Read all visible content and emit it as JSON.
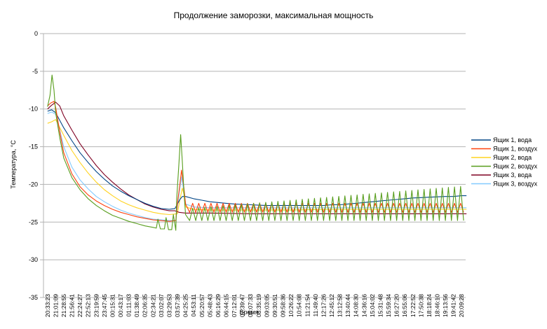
{
  "chart_data": {
    "type": "line",
    "title": "Продолжение заморозки, максимальная мощность",
    "xlabel": "Время",
    "ylabel": "Температура, °C",
    "ylim": [
      -35,
      0
    ],
    "yticks": [
      0,
      -5,
      -10,
      -15,
      -20,
      -25,
      -30,
      -35
    ],
    "grid": "horizontal",
    "legend_position": "right",
    "x_tick_labels": [
      "20:33:23",
      "21:01:09",
      "21:28:55",
      "21:56:41",
      "22:24:27",
      "22:52:13",
      "23:19:59",
      "23:47:45",
      "00:15:31",
      "00:43:17",
      "01:11:03",
      "01:38:49",
      "02:06:35",
      "02:34:21",
      "03:02:07",
      "03:29:53",
      "03:57:39",
      "04:25:25",
      "04:53:11",
      "05:20:57",
      "05:48:43",
      "06:16:29",
      "06:44:15",
      "07:12:01",
      "07:39:47",
      "08:07:33",
      "08:35:19",
      "09:03:05",
      "09:30:51",
      "09:58:36",
      "10:26:22",
      "10:54:08",
      "11:21:54",
      "11:49:40",
      "12:17:26",
      "12:45:12",
      "13:12:58",
      "13:40:44",
      "14:08:30",
      "14:36:16",
      "15:04:02",
      "15:31:48",
      "15:59:34",
      "16:27:20",
      "16:55:06",
      "17:22:52",
      "17:50:38",
      "18:18:24",
      "18:46:10",
      "19:13:56",
      "19:41:42",
      "20:09:28"
    ],
    "series": [
      {
        "name": "Ящик 1, вода",
        "color": "#004586",
        "points": [
          [
            0,
            -10.3
          ],
          [
            0.5,
            -10.1
          ],
          [
            1,
            -10.5
          ],
          [
            2,
            -12.5
          ],
          [
            3,
            -14.2
          ],
          [
            4,
            -15.8
          ],
          [
            5,
            -17.1
          ],
          [
            6,
            -18.3
          ],
          [
            7,
            -19.3
          ],
          [
            8,
            -20.2
          ],
          [
            9,
            -20.9
          ],
          [
            10,
            -21.5
          ],
          [
            11,
            -22.0
          ],
          [
            12,
            -22.5
          ],
          [
            13,
            -22.9
          ],
          [
            14,
            -23.2
          ],
          [
            15,
            -23.3
          ],
          [
            15.7,
            -23.2
          ],
          [
            16.3,
            -22.0
          ],
          [
            16.6,
            -21.6
          ],
          [
            17,
            -21.6
          ],
          [
            18,
            -21.9
          ],
          [
            19,
            -22.1
          ],
          [
            20,
            -22.3
          ],
          [
            21,
            -22.4
          ],
          [
            22,
            -22.5
          ],
          [
            23,
            -22.6
          ],
          [
            24,
            -22.65
          ],
          [
            25,
            -22.7
          ],
          [
            26,
            -22.75
          ],
          [
            27,
            -22.8
          ],
          [
            28,
            -22.8
          ],
          [
            29,
            -22.8
          ],
          [
            30,
            -22.8
          ],
          [
            31,
            -22.8
          ],
          [
            32,
            -22.8
          ],
          [
            33,
            -22.8
          ],
          [
            34,
            -22.8
          ],
          [
            35,
            -22.7
          ],
          [
            36,
            -22.7
          ],
          [
            37,
            -22.6
          ],
          [
            38,
            -22.5
          ],
          [
            39,
            -22.4
          ],
          [
            40,
            -22.3
          ],
          [
            41,
            -22.2
          ],
          [
            42,
            -22.1
          ],
          [
            43,
            -22.0
          ],
          [
            44,
            -21.9
          ],
          [
            45,
            -21.8
          ],
          [
            46,
            -21.75
          ],
          [
            47,
            -21.7
          ],
          [
            48,
            -21.65
          ],
          [
            49,
            -21.6
          ],
          [
            50,
            -21.6
          ],
          [
            51,
            -21.5
          ],
          [
            51.6,
            -21.5
          ]
        ]
      },
      {
        "name": "Ящик 1, воздух",
        "color": "#ff420e",
        "osc": {
          "x_from": 17.5,
          "x_to": 51.6,
          "base": -23.7,
          "amp": 1.2,
          "period": 0.75
        },
        "points": [
          [
            0,
            -9.6
          ],
          [
            0.4,
            -9.2
          ],
          [
            0.8,
            -9.0
          ],
          [
            1,
            -9.8
          ],
          [
            1.5,
            -13.0
          ],
          [
            2,
            -15.8
          ],
          [
            3,
            -18.6
          ],
          [
            4,
            -20.3
          ],
          [
            5,
            -21.4
          ],
          [
            6,
            -22.2
          ],
          [
            7,
            -22.8
          ],
          [
            8,
            -23.3
          ],
          [
            9,
            -23.7
          ],
          [
            10,
            -24.0
          ],
          [
            11,
            -24.3
          ],
          [
            12,
            -24.5
          ],
          [
            13,
            -24.7
          ],
          [
            14,
            -24.8
          ],
          [
            15,
            -24.9
          ],
          [
            15.8,
            -24.8
          ],
          [
            16,
            -22.5
          ],
          [
            16.3,
            -20.0
          ],
          [
            16.5,
            -18.1
          ],
          [
            16.8,
            -20.5
          ],
          [
            17,
            -22.6
          ],
          [
            17.5,
            -23.7
          ]
        ]
      },
      {
        "name": "Ящик 2, вода",
        "color": "#ffd320",
        "points": [
          [
            0,
            -11.9
          ],
          [
            0.5,
            -11.7
          ],
          [
            1,
            -11.4
          ],
          [
            2,
            -13.5
          ],
          [
            3,
            -15.5
          ],
          [
            4,
            -17.1
          ],
          [
            5,
            -18.5
          ],
          [
            6,
            -19.7
          ],
          [
            7,
            -20.7
          ],
          [
            8,
            -21.5
          ],
          [
            9,
            -22.2
          ],
          [
            10,
            -22.7
          ],
          [
            11,
            -23.1
          ],
          [
            12,
            -23.4
          ],
          [
            13,
            -23.7
          ],
          [
            14,
            -23.9
          ],
          [
            15,
            -24.0
          ],
          [
            16,
            -23.9
          ],
          [
            16.3,
            -22.0
          ],
          [
            16.6,
            -20.5
          ],
          [
            16.8,
            -21.3
          ],
          [
            17,
            -23.0
          ],
          [
            18,
            -23.3
          ],
          [
            20,
            -23.4
          ],
          [
            25,
            -23.4
          ],
          [
            30,
            -23.4
          ],
          [
            35,
            -23.3
          ],
          [
            40,
            -23.3
          ],
          [
            45,
            -23.3
          ],
          [
            51.6,
            -23.3
          ]
        ]
      },
      {
        "name": "Ящик 2, воздух",
        "color": "#579d1c",
        "osc": {
          "x_from": 17.5,
          "x_to": 51.6,
          "base": -24.8,
          "amp_start": 1.6,
          "amp_end": 4.6,
          "period": 0.75
        },
        "points": [
          [
            0,
            -9.7
          ],
          [
            0.3,
            -8.2
          ],
          [
            0.55,
            -5.5
          ],
          [
            0.8,
            -7.5
          ],
          [
            1,
            -10.5
          ],
          [
            1.5,
            -13.8
          ],
          [
            2,
            -16.5
          ],
          [
            3,
            -19.1
          ],
          [
            4,
            -20.7
          ],
          [
            5,
            -21.9
          ],
          [
            6,
            -22.8
          ],
          [
            7,
            -23.5
          ],
          [
            8,
            -24.1
          ],
          [
            9,
            -24.5
          ],
          [
            10,
            -24.9
          ],
          [
            11,
            -25.2
          ],
          [
            12,
            -25.5
          ],
          [
            13,
            -25.7
          ],
          [
            13.4,
            -25.8
          ],
          [
            13.6,
            -24.6
          ],
          [
            13.9,
            -25.9
          ],
          [
            14.4,
            -25.9
          ],
          [
            14.6,
            -24.4
          ],
          [
            14.9,
            -26.0
          ],
          [
            15.3,
            -26.0
          ],
          [
            15.5,
            -24.0
          ],
          [
            15.8,
            -26.1
          ],
          [
            15.9,
            -22.0
          ],
          [
            16.2,
            -17.0
          ],
          [
            16.4,
            -13.4
          ],
          [
            16.6,
            -17.0
          ],
          [
            16.8,
            -21.0
          ],
          [
            17,
            -24.0
          ],
          [
            17.5,
            -24.8
          ]
        ]
      },
      {
        "name": "Ящик 3, вода",
        "color": "#7e0021",
        "points": [
          [
            0,
            -10.0
          ],
          [
            0.5,
            -9.5
          ],
          [
            1,
            -9.1
          ],
          [
            1.5,
            -9.6
          ],
          [
            2,
            -10.9
          ],
          [
            3,
            -12.8
          ],
          [
            4,
            -14.6
          ],
          [
            5,
            -16.1
          ],
          [
            6,
            -17.5
          ],
          [
            7,
            -18.7
          ],
          [
            8,
            -19.7
          ],
          [
            9,
            -20.6
          ],
          [
            10,
            -21.4
          ],
          [
            11,
            -22.0
          ],
          [
            12,
            -22.6
          ],
          [
            13,
            -23.0
          ],
          [
            14,
            -23.3
          ],
          [
            15,
            -23.5
          ],
          [
            15.7,
            -23.5
          ],
          [
            16.2,
            -23.7
          ],
          [
            17,
            -23.8
          ],
          [
            20,
            -23.8
          ],
          [
            25,
            -23.9
          ],
          [
            30,
            -23.9
          ],
          [
            35,
            -23.9
          ],
          [
            40,
            -23.9
          ],
          [
            45,
            -23.9
          ],
          [
            51.6,
            -23.9
          ]
        ]
      },
      {
        "name": "Ящик 3, воздух",
        "color": "#83caff",
        "points": [
          [
            0,
            -10.6
          ],
          [
            0.5,
            -10.4
          ],
          [
            1,
            -10.7
          ],
          [
            1.5,
            -12.8
          ],
          [
            2,
            -15.0
          ],
          [
            3,
            -17.7
          ],
          [
            4,
            -19.4
          ],
          [
            5,
            -20.6
          ],
          [
            6,
            -21.6
          ],
          [
            7,
            -22.3
          ],
          [
            8,
            -22.9
          ],
          [
            9,
            -23.4
          ],
          [
            10,
            -23.8
          ],
          [
            11,
            -24.1
          ],
          [
            12,
            -24.4
          ],
          [
            13,
            -24.6
          ],
          [
            14,
            -24.7
          ],
          [
            15,
            -24.8
          ],
          [
            15.8,
            -24.8
          ],
          [
            16,
            -23.0
          ],
          [
            16.3,
            -20.5
          ],
          [
            16.5,
            -19.0
          ],
          [
            16.8,
            -21.0
          ],
          [
            17,
            -22.6
          ],
          [
            18,
            -23.0
          ],
          [
            20,
            -23.1
          ],
          [
            25,
            -23.1
          ],
          [
            30,
            -23.1
          ],
          [
            35,
            -23.1
          ],
          [
            40,
            -23.1
          ],
          [
            45,
            -23.1
          ],
          [
            51.6,
            -23.1
          ]
        ]
      }
    ]
  }
}
